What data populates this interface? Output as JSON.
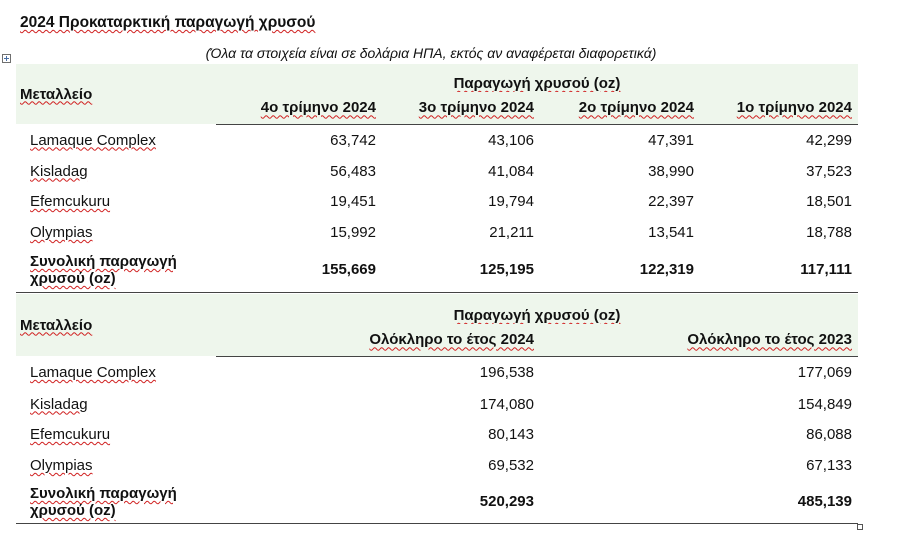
{
  "title": "2024 Προκαταρκτική παραγωγή χρυσού",
  "subtitle": "(Όλα τα στοιχεία είναι σε δολάρια ΗΠΑ, εκτός αν αναφέρεται διαφορετικά)",
  "icons": {
    "move_handle": "table-move-handle-icon",
    "resize_handle": "table-resize-handle-icon"
  },
  "quarterly_table": {
    "mine_header": "Μεταλλείο",
    "group_header": "Παραγωγή χρυσού (oz)",
    "columns": [
      "4ο τρίμηνο 2024",
      "3ο τρίμηνο 2024",
      "2ο τρίμηνο 2024",
      "1ο τρίμηνο 2024"
    ],
    "rows": [
      {
        "mine": "Lamaque Complex",
        "values": [
          "63,742",
          "43,106",
          "47,391",
          "42,299"
        ]
      },
      {
        "mine": "Kisladag",
        "values": [
          "56,483",
          "41,084",
          "38,990",
          "37,523"
        ]
      },
      {
        "mine": "Efemcukuru",
        "values": [
          "19,451",
          "19,794",
          "22,397",
          "18,501"
        ]
      },
      {
        "mine": "Olympias",
        "values": [
          "15,992",
          "21,211",
          "13,541",
          "18,788"
        ]
      }
    ],
    "total": {
      "label": "Συνολική παραγωγή χρυσού (oz)",
      "values": [
        "155,669",
        "125,195",
        "122,319",
        "117,111"
      ]
    }
  },
  "annual_table": {
    "mine_header": "Μεταλλείο",
    "group_header": "Παραγωγή χρυσού (oz)",
    "columns": [
      "Ολόκληρο το έτος 2024",
      "Ολόκληρο το έτος 2023"
    ],
    "rows": [
      {
        "mine": "Lamaque Complex",
        "values": [
          "196,538",
          "177,069"
        ]
      },
      {
        "mine": "Kisladag",
        "values": [
          "174,080",
          "154,849"
        ]
      },
      {
        "mine": "Efemcukuru",
        "values": [
          "80,143",
          "86,088"
        ]
      },
      {
        "mine": "Olympias",
        "values": [
          "69,532",
          "67,133"
        ]
      }
    ],
    "total": {
      "label": "Συνολική παραγωγή χρυσού (oz)",
      "values": [
        "520,293",
        "485,139"
      ]
    }
  },
  "colors": {
    "header_shading": "#eef6ec",
    "rule": "#444444",
    "spellcheck_underline": "#d02020"
  }
}
